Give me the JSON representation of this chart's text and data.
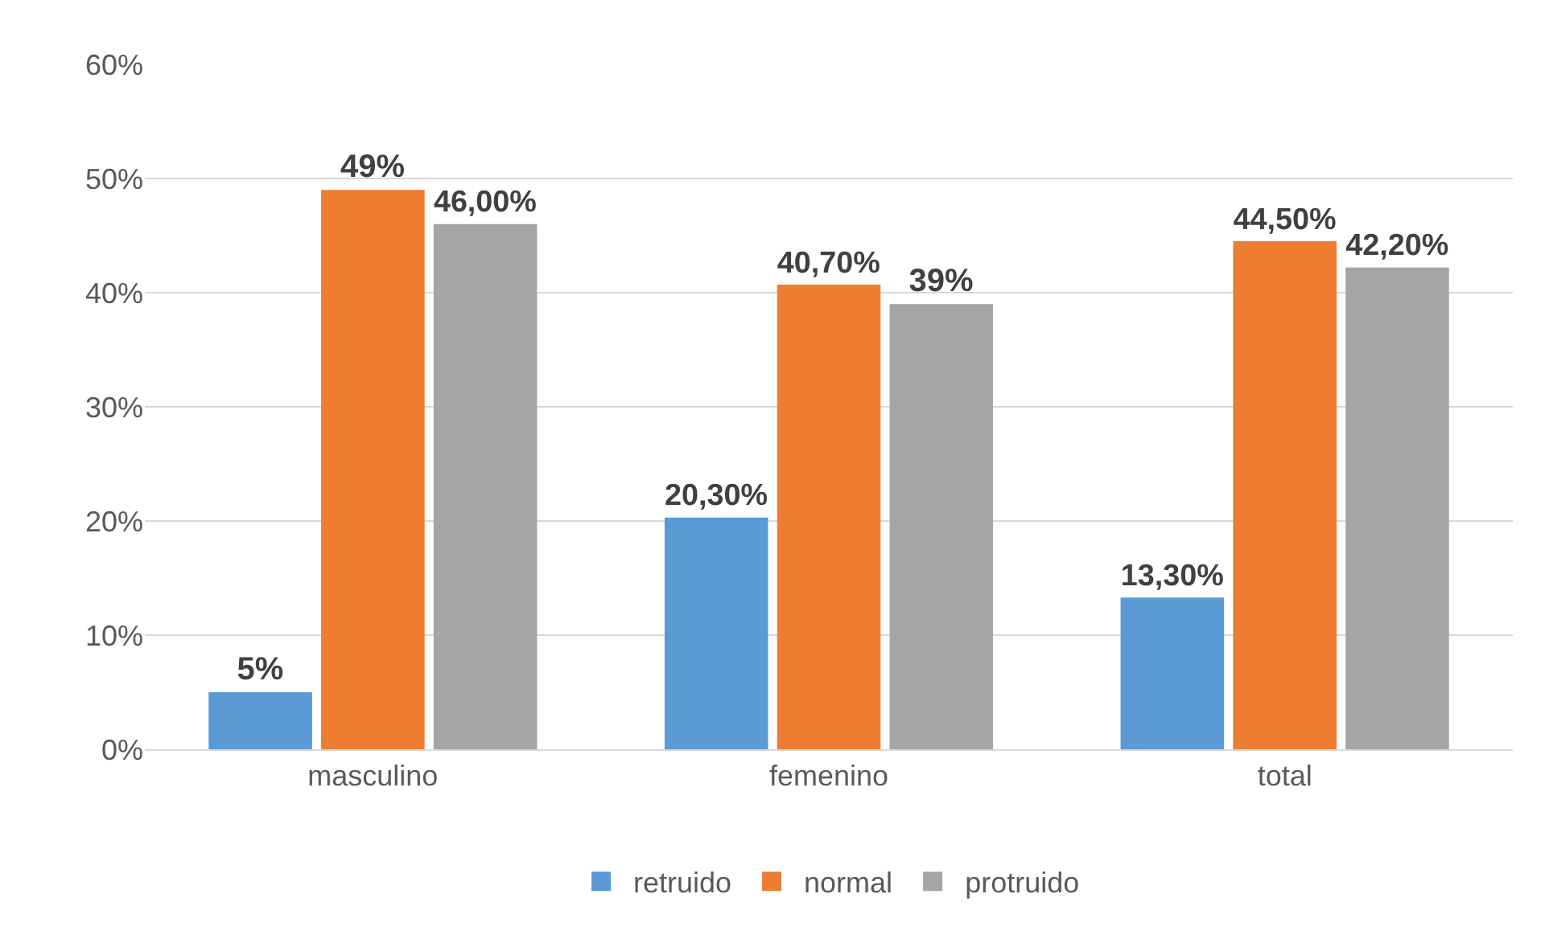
{
  "chart_data": {
    "type": "bar",
    "categories": [
      "masculino",
      "femenino",
      "total"
    ],
    "series": [
      {
        "name": "retruido",
        "color": "#5b9bd5",
        "values": [
          5,
          20.3,
          13.3
        ],
        "value_labels": [
          "5%",
          "20,30%",
          "13,30%"
        ]
      },
      {
        "name": "normal",
        "color": "#ed7d31",
        "values": [
          49,
          40.7,
          44.5
        ],
        "value_labels": [
          "49%",
          "40,70%",
          "44,50%"
        ]
      },
      {
        "name": "protruido",
        "color": "#a5a5a5",
        "values": [
          46,
          39,
          42.2
        ],
        "value_labels": [
          "46,00%",
          "39%",
          "42,20%"
        ]
      }
    ],
    "ylim": [
      0,
      60
    ],
    "yticks": [
      {
        "value": 0,
        "label": "0%"
      },
      {
        "value": 10,
        "label": "10%"
      },
      {
        "value": 20,
        "label": "20%"
      },
      {
        "value": 30,
        "label": "30%"
      },
      {
        "value": 40,
        "label": "40%"
      },
      {
        "value": 50,
        "label": "50%"
      },
      {
        "value": 60,
        "label": "60%"
      }
    ],
    "grid": "y",
    "legend": "bottom"
  }
}
